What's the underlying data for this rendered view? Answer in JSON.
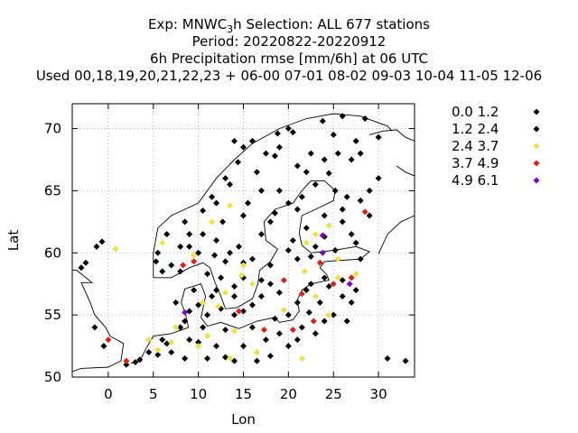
{
  "title_lines": [
    "Exp: MNWC_3h   Selection: ALL     677 stations",
    "Period: 20220822-20220912",
    "6h Precipitation rmse [mm/6h] at  06 UTC",
    "Used 00,18,19,20,21,22,23  + 06-00 07-01 08-02 09-03 10-04 11-05 12-06"
  ],
  "chart_data": {
    "type": "scatter",
    "xlabel": "Lon",
    "ylabel": "Lat",
    "xlim": [
      -4,
      34
    ],
    "ylim": [
      50,
      72
    ],
    "xticks": [
      "0",
      "5",
      "10",
      "15",
      "20",
      "25",
      "30"
    ],
    "yticks": [
      "50",
      "55",
      "60",
      "65",
      "70"
    ],
    "grid": true,
    "legend_position": "right",
    "classes": [
      {
        "label": "0.0 1.2",
        "color": "#000000"
      },
      {
        "label": "1.2 2.4",
        "color": "#000000"
      },
      {
        "label": "2.4 3.7",
        "color": "#f0e040"
      },
      {
        "label": "3.7 4.9",
        "color": "#e02010"
      },
      {
        "label": "4.9 6.1",
        "color": "#8000c0"
      }
    ],
    "points_by_class": {
      "0.0 1.2": [
        [
          26,
          71
        ],
        [
          28.5,
          70.8
        ],
        [
          23.8,
          70.6
        ],
        [
          20.5,
          69.7
        ],
        [
          18.8,
          69.6
        ],
        [
          16,
          69
        ],
        [
          15,
          68.5
        ],
        [
          25.5,
          68
        ],
        [
          14.4,
          67.3
        ],
        [
          27,
          67.5
        ],
        [
          21,
          67
        ],
        [
          24.5,
          66.4
        ],
        [
          30,
          66
        ],
        [
          13,
          66
        ],
        [
          25.2,
          65
        ],
        [
          17,
          65
        ],
        [
          20,
          64
        ],
        [
          11.5,
          64.5
        ],
        [
          28,
          64.2
        ],
        [
          18,
          62.5
        ],
        [
          22,
          62
        ],
        [
          10.5,
          63.4
        ],
        [
          12,
          61
        ],
        [
          26,
          62.5
        ],
        [
          14.5,
          60.5
        ],
        [
          9,
          61.5
        ],
        [
          6.5,
          61.5
        ],
        [
          24,
          61.3
        ],
        [
          25.2,
          60.2
        ],
        [
          27.5,
          60.8
        ],
        [
          5.5,
          60
        ],
        [
          10,
          60
        ],
        [
          16,
          59.5
        ],
        [
          21,
          59.5
        ],
        [
          13,
          59.3
        ],
        [
          18,
          59
        ],
        [
          8,
          58.5
        ],
        [
          11,
          58.3
        ],
        [
          15,
          58
        ],
        [
          24,
          58
        ],
        [
          26,
          57.8
        ],
        [
          9.5,
          57
        ],
        [
          12,
          57
        ],
        [
          22,
          57
        ],
        [
          17,
          56.5
        ],
        [
          27,
          56
        ],
        [
          10,
          55.8
        ],
        [
          12.5,
          55.5
        ],
        [
          14,
          55
        ],
        [
          20,
          55
        ],
        [
          25,
          55
        ],
        [
          8.5,
          54.5
        ],
        [
          10.5,
          54
        ],
        [
          16,
          54
        ],
        [
          19,
          53.5
        ],
        [
          23,
          53.5
        ],
        [
          6,
          53
        ],
        [
          9,
          53
        ],
        [
          12,
          52.5
        ],
        [
          15,
          52.5
        ],
        [
          20,
          52.5
        ],
        [
          4.5,
          52
        ],
        [
          7,
          52
        ],
        [
          11,
          51.5
        ],
        [
          14,
          51.3
        ],
        [
          18,
          51.7
        ],
        [
          31,
          51.5
        ],
        [
          33,
          51.3
        ],
        [
          3,
          51.2
        ],
        [
          -0.5,
          52.5
        ],
        [
          -1.5,
          54
        ],
        [
          -3,
          58.8
        ],
        [
          -2.5,
          59.2
        ],
        [
          -1.3,
          60.5
        ],
        [
          -0.7,
          60.9
        ],
        [
          30,
          69.3
        ],
        [
          22.5,
          68
        ],
        [
          18.5,
          67.8
        ],
        [
          16.5,
          66.5
        ],
        [
          23,
          65.5
        ],
        [
          26.5,
          64.5
        ],
        [
          29,
          63
        ],
        [
          21,
          63.5
        ],
        [
          15,
          63
        ],
        [
          12.7,
          62.5
        ],
        [
          27,
          61.5
        ],
        [
          23,
          60.5
        ],
        [
          20,
          60.2
        ],
        [
          8,
          60.5
        ],
        [
          7,
          59
        ],
        [
          11.8,
          59.8
        ],
        [
          14,
          56.5
        ],
        [
          18,
          57.5
        ],
        [
          23.5,
          56
        ],
        [
          26.5,
          54.5
        ],
        [
          21.5,
          54
        ]
      ],
      "1.2 2.4": [
        [
          25,
          69.5
        ],
        [
          27.5,
          69
        ],
        [
          19,
          68.5
        ],
        [
          17.5,
          68
        ],
        [
          22,
          66.5
        ],
        [
          13.5,
          65.5
        ],
        [
          19,
          65
        ],
        [
          15.5,
          64
        ],
        [
          24,
          63
        ],
        [
          17,
          61.5
        ],
        [
          20.5,
          61
        ],
        [
          8.5,
          62.5
        ],
        [
          10.5,
          61.5
        ],
        [
          13.5,
          60
        ],
        [
          22.5,
          59.7
        ],
        [
          28,
          59.5
        ],
        [
          6,
          58.5
        ],
        [
          12.5,
          58
        ],
        [
          17,
          57.8
        ],
        [
          22.5,
          57.5
        ],
        [
          14,
          57.3
        ],
        [
          26,
          56.5
        ],
        [
          7.5,
          56
        ],
        [
          21,
          56
        ],
        [
          11,
          55
        ],
        [
          15,
          55.3
        ],
        [
          24,
          54.5
        ],
        [
          8,
          54
        ],
        [
          13,
          53.8
        ],
        [
          17.5,
          53
        ],
        [
          21,
          53
        ],
        [
          10,
          52.8
        ],
        [
          5.5,
          51.8
        ],
        [
          8.5,
          51.5
        ],
        [
          13,
          51.6
        ],
        [
          16.5,
          51.3
        ],
        [
          2,
          51
        ],
        [
          28,
          68
        ],
        [
          20,
          70
        ],
        [
          14,
          69
        ],
        [
          24,
          67.5
        ],
        [
          29,
          65
        ],
        [
          21.5,
          64.5
        ],
        [
          12,
          64
        ],
        [
          26,
          63.5
        ],
        [
          18.5,
          63.2
        ],
        [
          9,
          60.5
        ],
        [
          15,
          59.2
        ],
        [
          5.3,
          59.3
        ],
        [
          24.5,
          57.3
        ],
        [
          19,
          56.8
        ],
        [
          11.5,
          56.5
        ],
        [
          16,
          55.8
        ],
        [
          9,
          55.3
        ],
        [
          27.5,
          57
        ],
        [
          22.3,
          55.2
        ],
        [
          18.5,
          54.7
        ],
        [
          6.5,
          52.7
        ],
        [
          3.5,
          51.4
        ]
      ],
      "2.4 3.7": [
        [
          13.5,
          63.8
        ],
        [
          11.5,
          62.5
        ],
        [
          24.5,
          62.2
        ],
        [
          23,
          61.5
        ],
        [
          22,
          60.8
        ],
        [
          6,
          60.8
        ],
        [
          0.8,
          60.3
        ],
        [
          9.5,
          59.8
        ],
        [
          25.5,
          59.5
        ],
        [
          15,
          59
        ],
        [
          21.8,
          58.5
        ],
        [
          27.5,
          58.3
        ],
        [
          25.5,
          58
        ],
        [
          14.8,
          58.2
        ],
        [
          16,
          57.5
        ],
        [
          13,
          56.8
        ],
        [
          23,
          56.5
        ],
        [
          10.5,
          56
        ],
        [
          12.2,
          55.7
        ],
        [
          19.5,
          55.4
        ],
        [
          24.5,
          55
        ],
        [
          7.5,
          54
        ],
        [
          14,
          53.7
        ],
        [
          4.5,
          53
        ],
        [
          7,
          52.8
        ],
        [
          10,
          52.5
        ],
        [
          5.5,
          52.2
        ],
        [
          16.5,
          52
        ],
        [
          13.5,
          51.5
        ],
        [
          21.5,
          51.5
        ],
        [
          11,
          53.3
        ]
      ],
      "3.7 4.9": [
        [
          28.5,
          63.3
        ],
        [
          8.3,
          59
        ],
        [
          9.5,
          59.3
        ],
        [
          23.5,
          59.2
        ],
        [
          19.5,
          57.8
        ],
        [
          25,
          57.5
        ],
        [
          27,
          58
        ],
        [
          21.5,
          56.7
        ],
        [
          14.5,
          55.3
        ],
        [
          17.3,
          53.8
        ],
        [
          20.5,
          53.8
        ],
        [
          22.8,
          54.5
        ],
        [
          2,
          51.3
        ],
        [
          0,
          53
        ]
      ],
      "4.9 6.1": [
        [
          23.8,
          61.4
        ],
        [
          23.8,
          60
        ],
        [
          26.8,
          57.5
        ],
        [
          8.5,
          55.2
        ]
      ]
    }
  }
}
